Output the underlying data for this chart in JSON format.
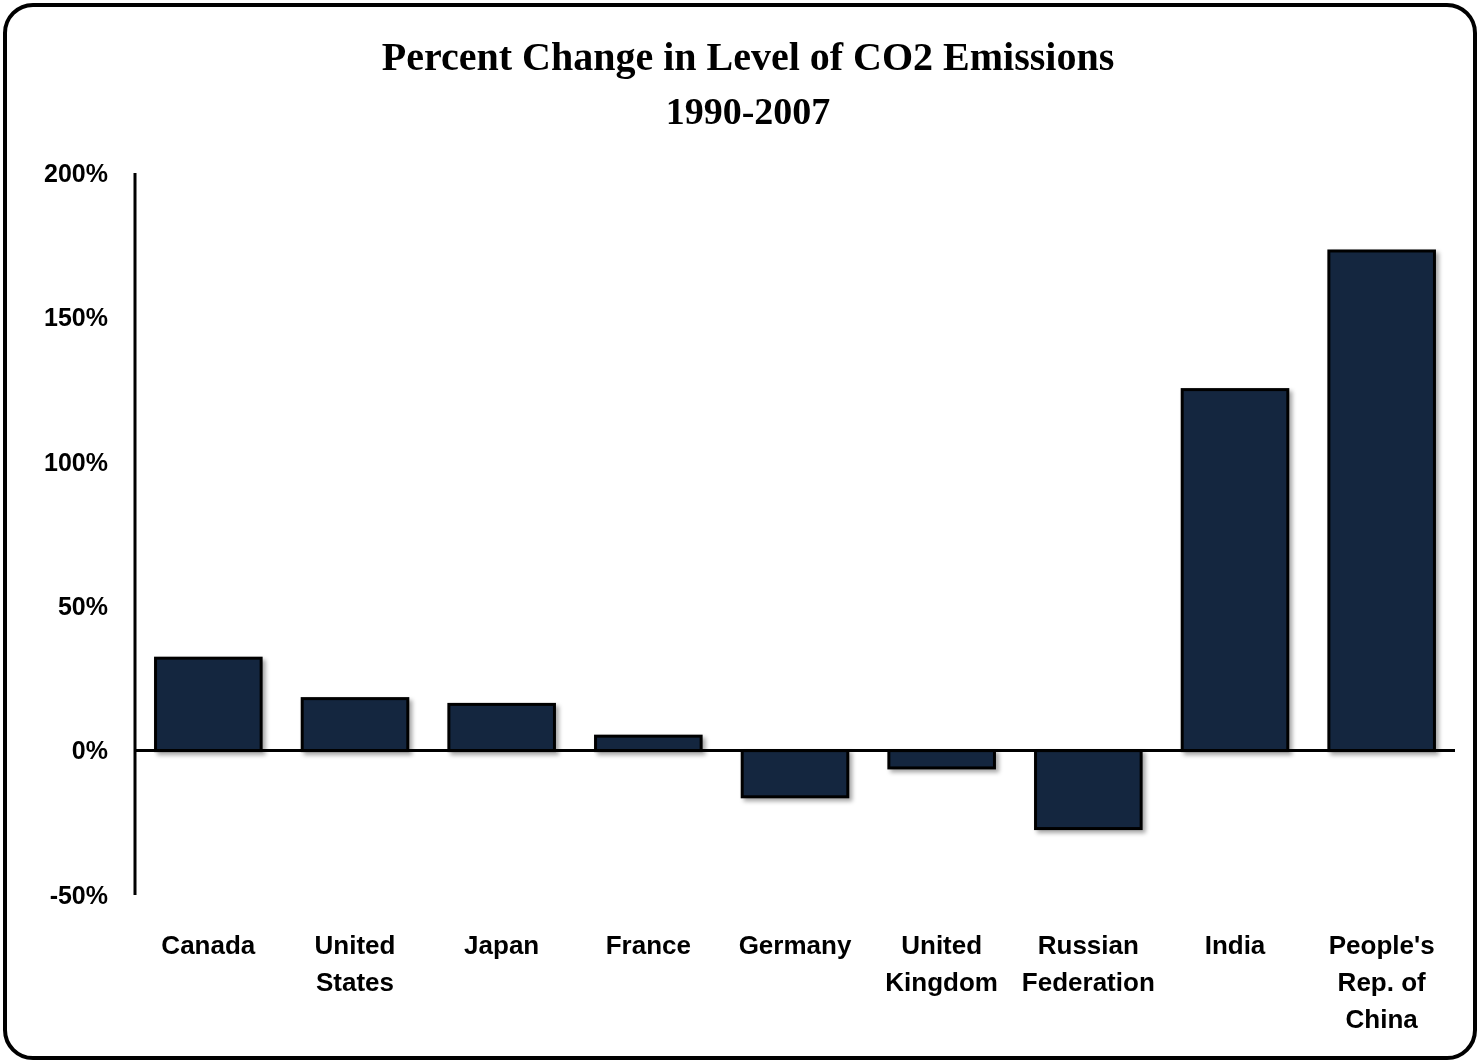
{
  "chart_data": {
    "type": "bar",
    "title": "Percent Change in Level of CO2 Emissions",
    "subtitle": "1990-2007",
    "categories": [
      "Canada",
      "United States",
      "Japan",
      "France",
      "Germany",
      "United Kingdom",
      "Russian Federation",
      "India",
      "People's Rep. of China"
    ],
    "values": [
      32,
      18,
      16,
      5,
      -16,
      -6,
      -27,
      125,
      173
    ],
    "color": "#14263f",
    "ylim": [
      -50,
      200
    ],
    "yticks": [
      {
        "value": -50,
        "label": "-50%"
      },
      {
        "value": 0,
        "label": "0%"
      },
      {
        "value": 50,
        "label": "50%"
      },
      {
        "value": 100,
        "label": "100%"
      },
      {
        "value": 150,
        "label": "150%"
      },
      {
        "value": 200,
        "label": "200%"
      }
    ]
  }
}
